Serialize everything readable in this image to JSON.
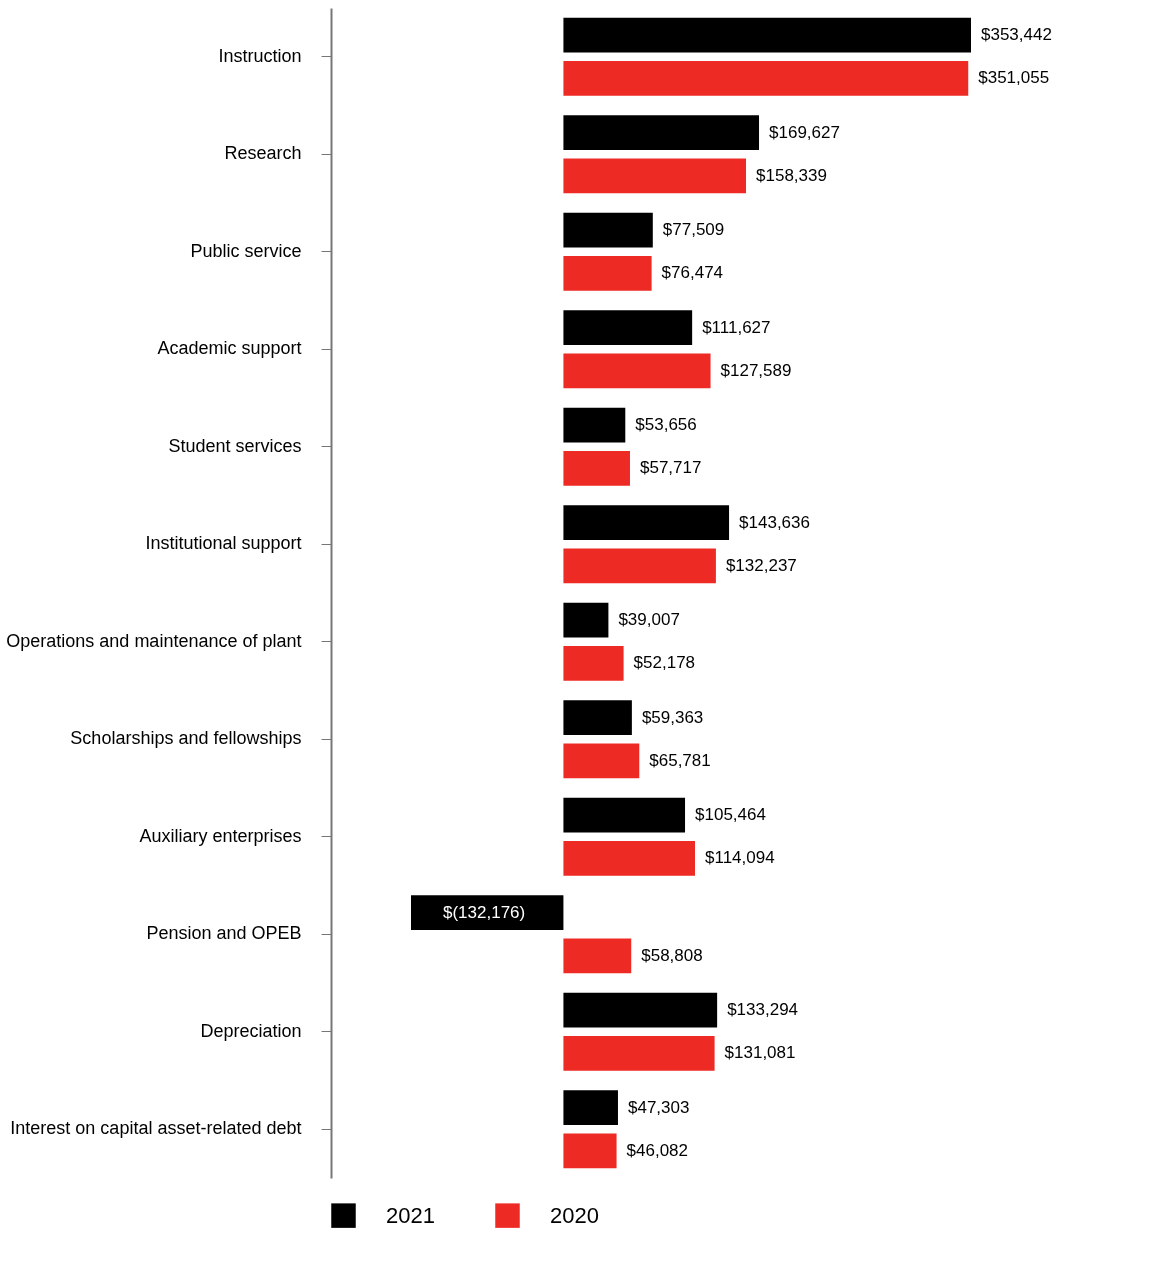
{
  "chart_data": {
    "type": "bar",
    "orientation": "horizontal",
    "tick_labels": "y",
    "categories": [
      "Instruction",
      "Research",
      "Public service",
      "Academic support",
      "Student services",
      "Institutional support",
      "Operations and maintenance of plant",
      "Scholarships and fellowships",
      "Auxiliary enterprises",
      "Pension and OPEB",
      "Depreciation",
      "Interest on capital asset-related debt"
    ],
    "series": [
      {
        "name": "2021",
        "color": "#000000",
        "values": [
          353442,
          169627,
          77509,
          111627,
          53656,
          143636,
          39007,
          59363,
          105464,
          -132176,
          133294,
          47303
        ],
        "value_labels": [
          "$353,442",
          "$169,627",
          "$77,509",
          "$111,627",
          "$53,656",
          "$143,636",
          "$39,007",
          "$59,363",
          "$105,464",
          "$(132,176)",
          "$133,294",
          "$47,303"
        ]
      },
      {
        "name": "2020",
        "color": "#ee2a24",
        "values": [
          351055,
          158339,
          76474,
          127589,
          57717,
          132237,
          52178,
          65781,
          114094,
          58808,
          131081,
          46082
        ],
        "value_labels": [
          "$351,055",
          "$158,339",
          "$76,474",
          "$127,589",
          "$57,717",
          "$132,237",
          "$52,178",
          "$65,781",
          "$114,094",
          "$58,808",
          "$131,081",
          "$46,082"
        ]
      }
    ],
    "legend": "bottom"
  }
}
